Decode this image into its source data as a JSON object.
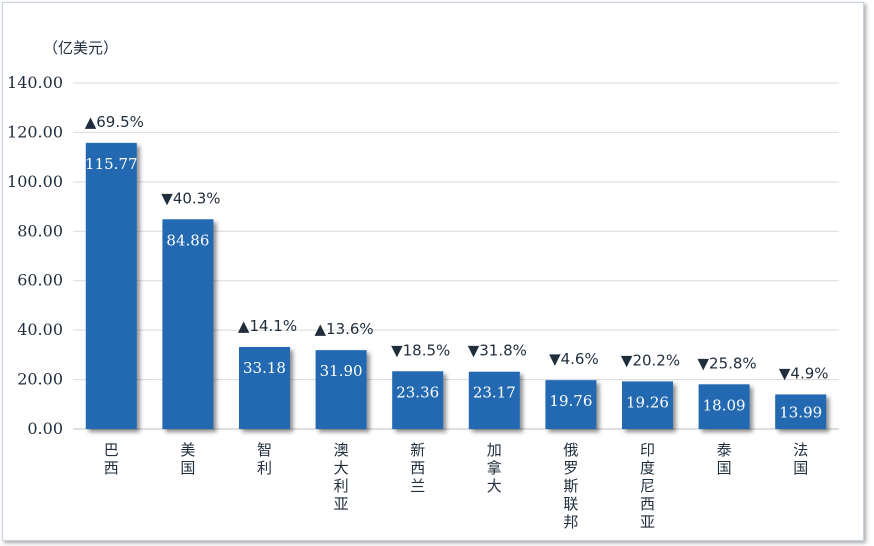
{
  "chart_data": {
    "type": "bar",
    "unit_label": "（亿美元）",
    "categories": [
      "巴西",
      "美国",
      "智利",
      "澳大利亚",
      "新西兰",
      "加拿大",
      "俄罗斯联邦",
      "印度尼西亚",
      "泰国",
      "法国"
    ],
    "values": [
      115.77,
      84.86,
      33.18,
      31.9,
      23.36,
      23.17,
      19.76,
      19.26,
      18.09,
      13.99
    ],
    "value_labels": [
      "115.77",
      "84.86",
      "33.18",
      "31.90",
      "23.36",
      "23.17",
      "19.76",
      "19.26",
      "18.09",
      "13.99"
    ],
    "changes": [
      "▲69.5%",
      "▼40.3%",
      "▲14.1%",
      "▲13.6%",
      "▼18.5%",
      "▼31.8%",
      "▼4.6%",
      "▼20.2%",
      "▼25.8%",
      "▼4.9%"
    ],
    "yticks": [
      "0.00",
      "20.00",
      "40.00",
      "60.00",
      "80.00",
      "100.00",
      "120.00",
      "140.00"
    ],
    "ylim": [
      0,
      140
    ],
    "grid": true,
    "bar_color": "#2269b2"
  }
}
